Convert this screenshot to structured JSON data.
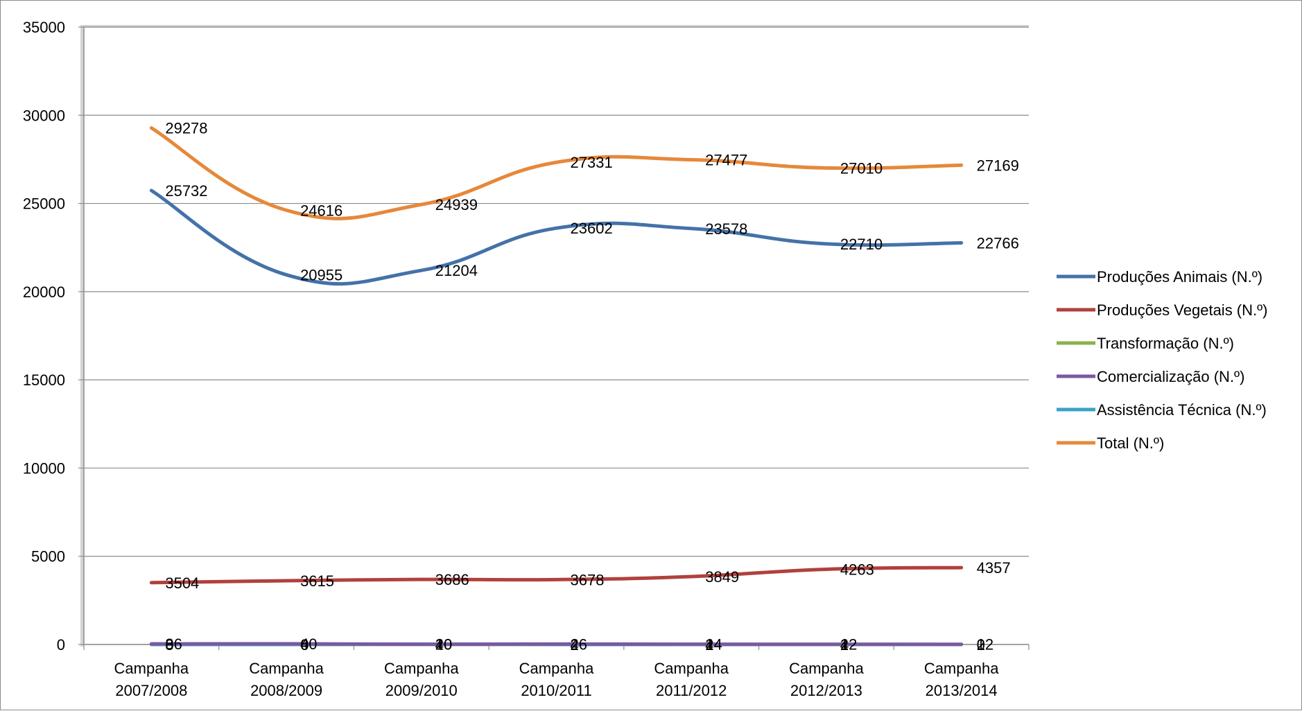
{
  "chart_data": {
    "type": "line",
    "title": "",
    "xlabel": "",
    "ylabel": "",
    "ylim": [
      0,
      35000
    ],
    "ytick_step": 5000,
    "y_ticks": [
      "0",
      "5000",
      "10000",
      "15000",
      "20000",
      "25000",
      "30000",
      "35000"
    ],
    "grid": true,
    "legend_position": "right",
    "categories": [
      [
        "Campanha",
        "2007/2008"
      ],
      [
        "Campanha",
        "2008/2009"
      ],
      [
        "Campanha",
        "2009/2010"
      ],
      [
        "Campanha",
        "2010/2011"
      ],
      [
        "Campanha",
        "2011/2012"
      ],
      [
        "Campanha",
        "2012/2013"
      ],
      [
        "Campanha",
        "2013/2014"
      ]
    ],
    "series": [
      {
        "name": "Produções Animais (N.º)",
        "color": "#4472a8",
        "values": [
          25732,
          20955,
          21204,
          23602,
          23578,
          22710,
          22766
        ]
      },
      {
        "name": "Produções Vegetais (N.º)",
        "color": "#b0413d",
        "values": [
          3504,
          3615,
          3686,
          3678,
          3849,
          4263,
          4357
        ]
      },
      {
        "name": "Transformação (N.º)",
        "color": "#8ab14a",
        "values": [
          8,
          6,
          4,
          4,
          2,
          2,
          0
        ]
      },
      {
        "name": "Comercialização (N.º)",
        "color": "#7a5aa0",
        "values": [
          36,
          40,
          10,
          26,
          14,
          12,
          12
        ]
      },
      {
        "name": "Assistência Técnica (N.º)",
        "color": "#3aa2c4",
        "values": [
          0,
          0,
          20,
          2,
          4,
          4,
          2
        ]
      },
      {
        "name": "Total (N.º)",
        "color": "#e6883a",
        "values": [
          29278,
          24616,
          24939,
          27331,
          27477,
          27010,
          27169
        ]
      }
    ]
  }
}
